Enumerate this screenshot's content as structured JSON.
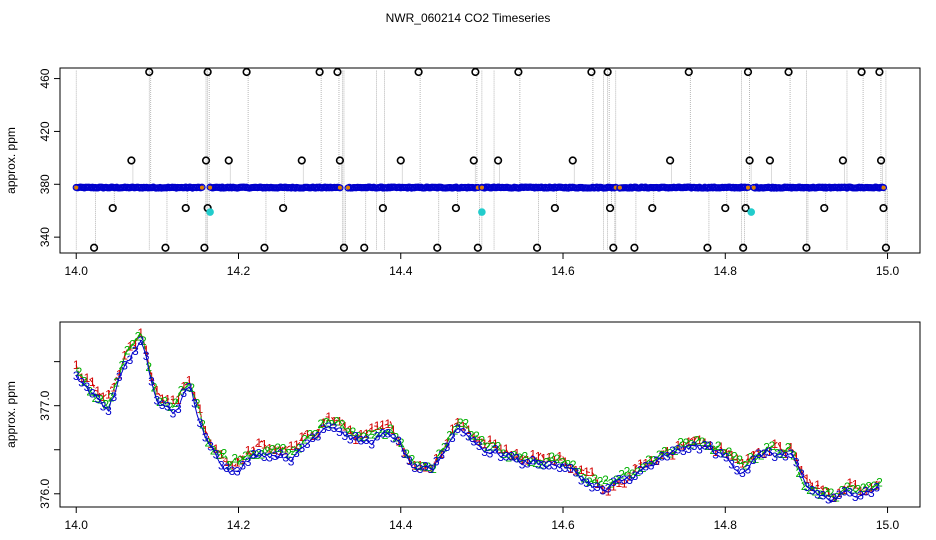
{
  "title": "NWR_060214  CO2 Timeseries",
  "colors": {
    "black": "#000000",
    "red": "#d40000",
    "green": "#00b000",
    "blue": "#0000cc",
    "cyan": "#22cccc",
    "orange": "#e08000",
    "gray": "#9a9a9a"
  },
  "chart_data": [
    {
      "type": "scatter",
      "ylabel": "approx. ppm",
      "xlim": [
        13.98,
        15.04
      ],
      "ylim": [
        328,
        468
      ],
      "xticks": [
        14.0,
        14.2,
        14.4,
        14.6,
        14.8,
        15.0
      ],
      "xtick_labels": [
        "14.0",
        "14.2",
        "14.4",
        "14.6",
        "14.8",
        "15.0"
      ],
      "yticks": [
        340,
        380,
        420,
        460
      ],
      "ytick_labels": [
        "340",
        "380",
        "420",
        "460"
      ],
      "baseline": 377.5,
      "baseline_segments": [
        [
          14.0,
          14.155
        ],
        [
          14.165,
          14.325
        ],
        [
          14.335,
          14.495
        ],
        [
          14.5,
          14.665
        ],
        [
          14.67,
          14.828
        ],
        [
          14.835,
          14.995
        ]
      ],
      "spikes_x": [
        14.0,
        14.09,
        14.16,
        14.162,
        14.33,
        14.328,
        14.37,
        14.38,
        14.5,
        14.515,
        14.65,
        14.655,
        14.665,
        14.82,
        14.9,
        14.95,
        14.998
      ],
      "outliers_black": [
        {
          "x": 14.022,
          "y": 332
        },
        {
          "x": 14.045,
          "y": 362
        },
        {
          "x": 14.068,
          "y": 398
        },
        {
          "x": 14.09,
          "y": 465
        },
        {
          "x": 14.11,
          "y": 332
        },
        {
          "x": 14.135,
          "y": 362
        },
        {
          "x": 14.158,
          "y": 332
        },
        {
          "x": 14.16,
          "y": 398
        },
        {
          "x": 14.162,
          "y": 465
        },
        {
          "x": 14.162,
          "y": 362
        },
        {
          "x": 14.188,
          "y": 398
        },
        {
          "x": 14.21,
          "y": 465
        },
        {
          "x": 14.232,
          "y": 332
        },
        {
          "x": 14.255,
          "y": 362
        },
        {
          "x": 14.278,
          "y": 398
        },
        {
          "x": 14.3,
          "y": 465
        },
        {
          "x": 14.322,
          "y": 465
        },
        {
          "x": 14.325,
          "y": 398
        },
        {
          "x": 14.33,
          "y": 332
        },
        {
          "x": 14.355,
          "y": 332
        },
        {
          "x": 14.378,
          "y": 362
        },
        {
          "x": 14.4,
          "y": 398
        },
        {
          "x": 14.422,
          "y": 465
        },
        {
          "x": 14.445,
          "y": 332
        },
        {
          "x": 14.468,
          "y": 362
        },
        {
          "x": 14.49,
          "y": 398
        },
        {
          "x": 14.492,
          "y": 465
        },
        {
          "x": 14.495,
          "y": 332
        },
        {
          "x": 14.52,
          "y": 398
        },
        {
          "x": 14.545,
          "y": 465
        },
        {
          "x": 14.568,
          "y": 332
        },
        {
          "x": 14.59,
          "y": 362
        },
        {
          "x": 14.612,
          "y": 398
        },
        {
          "x": 14.635,
          "y": 465
        },
        {
          "x": 14.655,
          "y": 465
        },
        {
          "x": 14.658,
          "y": 362
        },
        {
          "x": 14.662,
          "y": 332
        },
        {
          "x": 14.688,
          "y": 332
        },
        {
          "x": 14.71,
          "y": 362
        },
        {
          "x": 14.732,
          "y": 398
        },
        {
          "x": 14.755,
          "y": 465
        },
        {
          "x": 14.778,
          "y": 332
        },
        {
          "x": 14.8,
          "y": 362
        },
        {
          "x": 14.822,
          "y": 332
        },
        {
          "x": 14.825,
          "y": 362
        },
        {
          "x": 14.828,
          "y": 465
        },
        {
          "x": 14.83,
          "y": 398
        },
        {
          "x": 14.855,
          "y": 398
        },
        {
          "x": 14.878,
          "y": 465
        },
        {
          "x": 14.9,
          "y": 332
        },
        {
          "x": 14.922,
          "y": 362
        },
        {
          "x": 14.945,
          "y": 398
        },
        {
          "x": 14.968,
          "y": 465
        },
        {
          "x": 14.99,
          "y": 465
        },
        {
          "x": 14.992,
          "y": 398
        },
        {
          "x": 14.995,
          "y": 362
        },
        {
          "x": 14.998,
          "y": 332
        }
      ],
      "outliers_cyan": [
        {
          "x": 14.165,
          "y": 359
        },
        {
          "x": 14.5,
          "y": 359
        },
        {
          "x": 14.832,
          "y": 359
        }
      ]
    },
    {
      "type": "line",
      "ylabel": "approx. ppm",
      "xlim": [
        13.98,
        15.04
      ],
      "ylim": [
        375.85,
        377.95
      ],
      "xticks": [
        14.0,
        14.2,
        14.4,
        14.6,
        14.8,
        15.0
      ],
      "xtick_labels": [
        "14.0",
        "14.2",
        "14.4",
        "14.6",
        "14.8",
        "15.0"
      ],
      "yticks": [
        376.0,
        376.5,
        377.0,
        377.5
      ],
      "ytick_labels": [
        "376.0",
        "",
        "377.0",
        ""
      ],
      "x_range": [
        14.0,
        14.99
      ],
      "n_points": 300,
      "trend": [
        [
          14.0,
          377.4
        ],
        [
          14.02,
          377.15
        ],
        [
          14.04,
          377.0
        ],
        [
          14.06,
          377.5
        ],
        [
          14.08,
          377.75
        ],
        [
          14.1,
          377.05
        ],
        [
          14.12,
          376.95
        ],
        [
          14.14,
          377.25
        ],
        [
          14.16,
          376.6
        ],
        [
          14.19,
          376.3
        ],
        [
          14.23,
          376.5
        ],
        [
          14.27,
          376.45
        ],
        [
          14.31,
          376.85
        ],
        [
          14.35,
          376.6
        ],
        [
          14.39,
          376.7
        ],
        [
          14.42,
          376.25
        ],
        [
          14.44,
          376.3
        ],
        [
          14.47,
          376.8
        ],
        [
          14.5,
          376.55
        ],
        [
          14.55,
          376.4
        ],
        [
          14.6,
          376.35
        ],
        [
          14.65,
          376.05
        ],
        [
          14.7,
          376.3
        ],
        [
          14.75,
          376.55
        ],
        [
          14.78,
          376.55
        ],
        [
          14.82,
          376.3
        ],
        [
          14.85,
          376.5
        ],
        [
          14.88,
          376.45
        ],
        [
          14.9,
          376.1
        ],
        [
          14.93,
          375.95
        ],
        [
          14.96,
          376.05
        ],
        [
          14.99,
          376.1
        ]
      ],
      "series": [
        {
          "label": "1",
          "color": "#d40000",
          "offset": 0.04,
          "jitter": 0.11
        },
        {
          "label": "2",
          "color": "#00b000",
          "offset": 0.02,
          "jitter": 0.09
        },
        {
          "label": "3",
          "color": "#0000cc",
          "offset": -0.03,
          "jitter": 0.08
        }
      ]
    }
  ]
}
